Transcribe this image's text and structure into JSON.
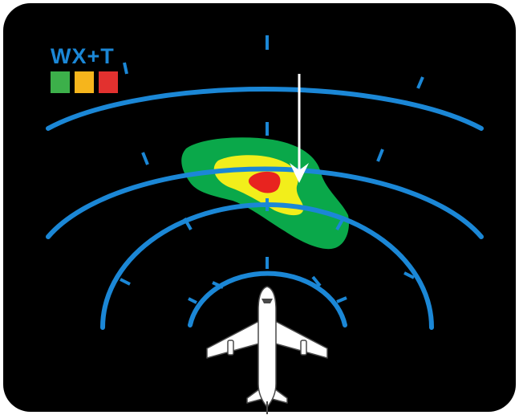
{
  "display": {
    "mode_label": "WX+T",
    "colors": {
      "background": "#000000",
      "range_rings": "#1b87d6",
      "mode_label": "#1b87d6",
      "arrow": "#ffffff",
      "aircraft": "#ffffff"
    },
    "legend": [
      {
        "name": "green-swatch",
        "color": "#3cb04a"
      },
      {
        "name": "yellow-swatch",
        "color": "#f6b51c"
      },
      {
        "name": "red-swatch",
        "color": "#e2312f"
      }
    ],
    "weather_cell": {
      "outer_color": "#0aa84a",
      "middle_color": "#f2ee1b",
      "inner_color": "#e8231f"
    },
    "own_ship_icon": "airplane-top-view-icon",
    "arrow_icon": "down-arrow-icon"
  }
}
